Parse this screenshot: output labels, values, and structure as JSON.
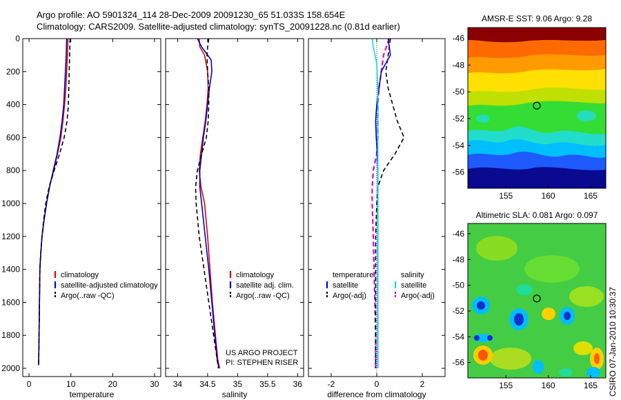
{
  "header": {
    "line1": "Argo profile: AO 5901324_114 28-Dec-2009 20091230_65 51.033S 158.654E",
    "line2": "Climatology: CARS2009. Satellite-adjusted climatology: synTS_20091228.nc (0.81d earlier)"
  },
  "footer_credit": "CSIRO 07-Jan-2010 10:30:37",
  "colors": {
    "climatology": "#dd0000",
    "satellite": "#0000cc",
    "argo": "#000000",
    "sal_satellite": "#00e0e0",
    "sal_argo": "#e000e0"
  },
  "chart_data": [
    {
      "type": "line",
      "name": "temperature",
      "xlabel": "temperature",
      "ylabel": "",
      "xlim": [
        -1.5,
        31.5
      ],
      "ylim": [
        2050,
        0
      ],
      "xticks": [
        0,
        10,
        20,
        30
      ],
      "xtick_labels": [
        "0",
        "10",
        "20",
        "30"
      ],
      "yticks": [
        0,
        200,
        400,
        600,
        800,
        1000,
        1200,
        1400,
        1600,
        1800,
        2000
      ],
      "ytick_labels": [
        "0",
        "200",
        "400",
        "600",
        "800",
        "1000",
        "1200",
        "1400",
        "1600",
        "1800",
        "2000"
      ],
      "legend_position": "lower-right",
      "legend": [
        {
          "label": "climatology",
          "color_key": "climatology",
          "dash": false
        },
        {
          "label": "satellite-adjusted climatology",
          "color_key": "satellite",
          "dash": false
        },
        {
          "label": "Argo(..raw -QC)",
          "color_key": "argo",
          "dash": true
        }
      ],
      "series": [
        {
          "color_key": "climatology",
          "dash": false,
          "width": 1.6,
          "x": [
            9.3,
            9.2,
            9.0,
            8.8,
            8.5,
            8.1,
            7.6,
            6.8,
            5.9,
            4.9,
            4.2,
            3.6,
            3.1,
            2.8,
            2.6,
            2.5,
            2.4,
            2.3
          ],
          "y": [
            0,
            100,
            200,
            300,
            400,
            500,
            600,
            700,
            800,
            900,
            1000,
            1100,
            1200,
            1300,
            1400,
            1600,
            1800,
            1980
          ]
        },
        {
          "color_key": "satellite",
          "dash": false,
          "width": 1.6,
          "x": [
            9.0,
            8.9,
            8.7,
            8.5,
            8.3,
            7.9,
            7.4,
            6.7,
            5.8,
            4.9,
            4.2,
            3.6,
            3.1,
            2.8,
            2.6,
            2.5,
            2.4,
            2.3
          ],
          "y": [
            0,
            100,
            200,
            300,
            400,
            500,
            600,
            700,
            800,
            900,
            1000,
            1100,
            1200,
            1300,
            1400,
            1600,
            1800,
            1980
          ]
        },
        {
          "color_key": "argo",
          "dash": true,
          "width": 1.6,
          "x": [
            9.8,
            9.7,
            9.6,
            9.5,
            9.4,
            9.1,
            8.4,
            7.3,
            6.0,
            4.8,
            4.0,
            3.5,
            3.1,
            2.8,
            2.6,
            2.5,
            2.4,
            2.3
          ],
          "y": [
            0,
            100,
            200,
            300,
            400,
            500,
            600,
            700,
            800,
            900,
            1000,
            1100,
            1200,
            1300,
            1400,
            1600,
            1800,
            1980
          ]
        }
      ]
    },
    {
      "type": "line",
      "name": "salinity",
      "xlabel": "salinity",
      "ylabel": "",
      "xlim": [
        33.8,
        36.1
      ],
      "ylim": [
        2050,
        0
      ],
      "xticks": [
        34,
        34.5,
        35,
        35.5,
        36
      ],
      "xtick_labels": [
        "34",
        "34.5",
        "35",
        "35.5",
        "36"
      ],
      "yticks": [
        0,
        200,
        400,
        600,
        800,
        1000,
        1200,
        1400,
        1600,
        1800,
        2000
      ],
      "legend_position": "lower-right",
      "legend": [
        {
          "label": "climatology",
          "color_key": "climatology",
          "dash": false
        },
        {
          "label": "satellite adj. clim.",
          "color_key": "satellite",
          "dash": false
        },
        {
          "label": "Argo(..raw -QC)",
          "color_key": "argo",
          "dash": true
        }
      ],
      "annotation": [
        "US ARGO PROJECT",
        "PI: STEPHEN RISER"
      ],
      "series": [
        {
          "color_key": "climatology",
          "dash": false,
          "width": 1.6,
          "x": [
            34.36,
            34.37,
            34.45,
            34.5,
            34.51,
            34.49,
            34.46,
            34.42,
            34.38,
            34.36,
            34.39,
            34.45,
            34.5,
            34.54,
            34.58,
            34.63,
            34.67,
            34.7
          ],
          "y": [
            0,
            50,
            100,
            200,
            300,
            400,
            500,
            600,
            700,
            800,
            900,
            1000,
            1200,
            1400,
            1600,
            1800,
            1950,
            2000
          ]
        },
        {
          "color_key": "satellite",
          "dash": false,
          "width": 1.6,
          "x": [
            34.33,
            34.4,
            34.56,
            34.57,
            34.53,
            34.5,
            34.47,
            34.43,
            34.4,
            34.37,
            34.37,
            34.4,
            34.46,
            34.52,
            34.57,
            34.62,
            34.66,
            34.69
          ],
          "y": [
            0,
            50,
            130,
            200,
            300,
            400,
            500,
            600,
            700,
            800,
            900,
            1000,
            1200,
            1400,
            1600,
            1800,
            1950,
            2000
          ]
        },
        {
          "color_key": "argo",
          "dash": true,
          "width": 1.6,
          "x": [
            34.52,
            34.5,
            34.49,
            34.5,
            34.52,
            34.52,
            34.51,
            34.48,
            34.4,
            34.33,
            34.3,
            34.31,
            34.36,
            34.44,
            34.52,
            34.6,
            34.66,
            34.68
          ],
          "y": [
            0,
            50,
            100,
            200,
            300,
            400,
            500,
            600,
            700,
            800,
            900,
            1000,
            1200,
            1400,
            1600,
            1800,
            1950,
            2000
          ]
        }
      ]
    },
    {
      "type": "line",
      "name": "difference",
      "xlabel": "difference from climatology",
      "ylabel": "",
      "xlim": [
        -3.0,
        3.0
      ],
      "ylim": [
        2050,
        0
      ],
      "xticks": [
        -2,
        0,
        2
      ],
      "xtick_labels": [
        "-2",
        "0",
        "2"
      ],
      "yticks": [
        0,
        200,
        400,
        600,
        800,
        1000,
        1200,
        1400,
        1600,
        1800,
        2000
      ],
      "zero_line": true,
      "legend_position": "lower-center",
      "legend_groups": [
        {
          "title": "temperature",
          "items": [
            {
              "label": "satellite",
              "color_key": "satellite",
              "dash": false
            },
            {
              "label": "Argo(-adj)",
              "color_key": "argo",
              "dash": true
            }
          ]
        },
        {
          "title": "salinity",
          "items": [
            {
              "label": "satellite",
              "color_key": "sal_satellite",
              "dash": false
            },
            {
              "label": "Argo(-adj)",
              "color_key": "sal_argo",
              "dash": true
            }
          ]
        }
      ],
      "series": [
        {
          "color_key": "sal_argo",
          "dash": true,
          "width": 2.2,
          "x": [
            0.55,
            0.3,
            0.2,
            0.1,
            0.05,
            0.05,
            0.05,
            0.0,
            -0.15,
            -0.2,
            -0.2,
            -0.15,
            -0.1,
            -0.05,
            -0.05
          ],
          "y": [
            0,
            100,
            200,
            300,
            400,
            500,
            600,
            700,
            800,
            900,
            1000,
            1200,
            1500,
            1800,
            2000
          ]
        },
        {
          "color_key": "argo",
          "dash": true,
          "width": 1.6,
          "x": [
            0.6,
            0.5,
            0.4,
            0.5,
            0.7,
            0.9,
            1.2,
            0.8,
            0.3,
            0.05,
            0.0,
            -0.05,
            -0.05,
            -0.05,
            -0.05
          ],
          "y": [
            0,
            100,
            200,
            300,
            400,
            500,
            600,
            700,
            800,
            900,
            1000,
            1200,
            1500,
            1800,
            2000
          ]
        },
        {
          "color_key": "satellite",
          "dash": false,
          "width": 1.6,
          "x": [
            0.5,
            0.6,
            0.2,
            0.1,
            0.0,
            -0.05,
            -0.02,
            0.02,
            0.05,
            0.05,
            0.05,
            0.05,
            0.05,
            0.05,
            0.05
          ],
          "y": [
            0,
            100,
            200,
            300,
            400,
            500,
            600,
            700,
            800,
            900,
            1000,
            1200,
            1500,
            1800,
            2000
          ]
        },
        {
          "color_key": "sal_satellite",
          "dash": false,
          "width": 1.6,
          "x": [
            -0.2,
            -0.15,
            0.0,
            0.05,
            0.05,
            0.05,
            0.05,
            0.05,
            0.05,
            0.05,
            0.05,
            0.05,
            0.05,
            0.05,
            0.05
          ],
          "y": [
            0,
            50,
            150,
            300,
            400,
            500,
            600,
            700,
            800,
            900,
            1000,
            1200,
            1500,
            1800,
            2000
          ]
        }
      ]
    },
    {
      "type": "heatmap",
      "name": "sst_map",
      "title": "AMSR-E SST: 9.06 Argo: 9.28",
      "xlim": [
        150.5,
        166.8
      ],
      "ylim": [
        -57.2,
        -45.2
      ],
      "xticks": [
        155,
        160,
        165
      ],
      "xtick_labels": [
        "155",
        "160",
        "165"
      ],
      "yticks": [
        -46,
        -48,
        -50,
        -52,
        -54,
        -56
      ],
      "ytick_labels": [
        "-46",
        "-48",
        "-50",
        "-52",
        "-54",
        "-56"
      ],
      "marker": {
        "lon": 158.65,
        "lat": -51.03
      }
    },
    {
      "type": "heatmap",
      "name": "sla_map",
      "title": "Altimetric SLA: 0.081 Argo: 0.097",
      "xlim": [
        150.5,
        166.8
      ],
      "ylim": [
        -57.2,
        -45.2
      ],
      "xticks": [
        155,
        160,
        165
      ],
      "xtick_labels": [
        "155",
        "160",
        "165"
      ],
      "yticks": [
        -46,
        -48,
        -50,
        -52,
        -54,
        -56
      ],
      "ytick_labels": [
        "-46",
        "-48",
        "-50",
        "-52",
        "-54",
        "-56"
      ],
      "marker": {
        "lon": 158.65,
        "lat": -51.03
      }
    }
  ]
}
